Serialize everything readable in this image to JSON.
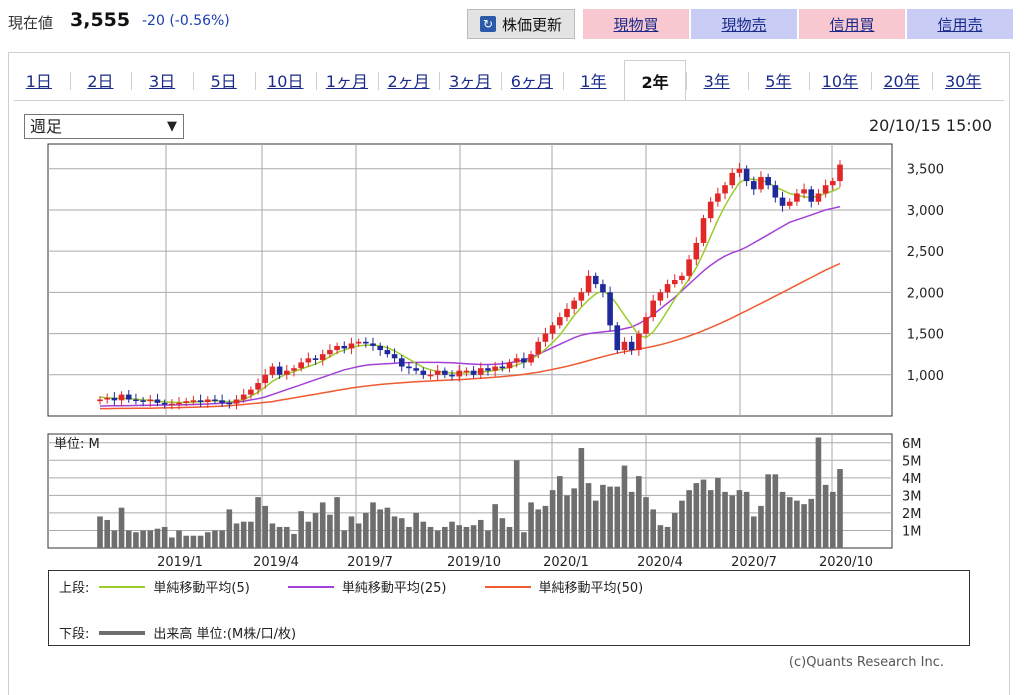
{
  "header": {
    "price_label": "現在値",
    "price": "3,555",
    "change": "-20 (-0.56%)",
    "update_button": "株価更新",
    "update_icon": "refresh-icon",
    "buttons": [
      {
        "label": "現物買",
        "color": "#f7c8cf"
      },
      {
        "label": "現物売",
        "color": "#c9cdf5"
      },
      {
        "label": "信用買",
        "color": "#f7c8cf"
      },
      {
        "label": "信用売",
        "color": "#c9cdf5"
      }
    ]
  },
  "tabs": [
    "1日",
    "2日",
    "3日",
    "5日",
    "10日",
    "1ヶ月",
    "2ヶ月",
    "3ヶ月",
    "6ヶ月",
    "1年",
    "2年",
    "3年",
    "5年",
    "10年",
    "20年",
    "30年"
  ],
  "active_tab": "2年",
  "period_select": "週足",
  "timestamp": "20/10/15 15:00",
  "legend": {
    "upper_label": "上段:",
    "lower_label": "下段:",
    "ma5": "単純移動平均(5)",
    "ma25": "単純移動平均(25)",
    "ma50": "単純移動平均(50)",
    "volume": "出来高 単位:(M株/口/枚)"
  },
  "copyright": "(c)Quants Research Inc.",
  "colors": {
    "up": "#e02828",
    "down": "#1e2a9a",
    "ma5": "#9ccc2c",
    "ma25": "#a340d8",
    "ma50": "#ef5a30",
    "volume": "#6e6e6e"
  },
  "chart_data": {
    "type": "candlestick",
    "price_axis": {
      "ticks": [
        "3,500",
        "3,000",
        "2,500",
        "2,000",
        "1,500",
        "1,000"
      ],
      "values": [
        3500,
        3000,
        2500,
        2000,
        1500,
        1000
      ],
      "ylim": [
        500,
        3800
      ]
    },
    "volume_axis": {
      "unit_label": "単位: M",
      "ticks": [
        "6M",
        "5M",
        "4M",
        "3M",
        "2M",
        "1M"
      ],
      "values": [
        6,
        5,
        4,
        3,
        2,
        1
      ],
      "ylim": [
        0,
        6.5
      ]
    },
    "x_labels": [
      "2019/1",
      "2019/4",
      "2019/7",
      "2019/10",
      "2020/1",
      "2020/4",
      "2020/7",
      "2020/10"
    ],
    "close": [
      700,
      720,
      690,
      760,
      700,
      690,
      680,
      700,
      660,
      640,
      650,
      660,
      680,
      690,
      670,
      700,
      690,
      660,
      650,
      700,
      760,
      820,
      900,
      1000,
      1100,
      1000,
      1050,
      1080,
      1150,
      1200,
      1180,
      1250,
      1300,
      1350,
      1320,
      1380,
      1400,
      1380,
      1350,
      1300,
      1250,
      1200,
      1100,
      1080,
      1050,
      1000,
      1000,
      1050,
      1000,
      980,
      1050,
      1050,
      1000,
      1080,
      1050,
      1100,
      1080,
      1150,
      1200,
      1150,
      1250,
      1400,
      1500,
      1600,
      1700,
      1800,
      1900,
      2000,
      2200,
      2100,
      2000,
      1600,
      1300,
      1400,
      1300,
      1500,
      1700,
      1900,
      2000,
      2100,
      2150,
      2200,
      2400,
      2600,
      2900,
      3100,
      3200,
      3300,
      3450,
      3500,
      3350,
      3250,
      3400,
      3300,
      3150,
      3050,
      3100,
      3200,
      3250,
      3100,
      3200,
      3300,
      3350,
      3550
    ],
    "ma5": [
      730,
      720,
      715,
      715,
      710,
      705,
      695,
      690,
      680,
      672,
      668,
      664,
      664,
      668,
      672,
      680,
      685,
      680,
      675,
      680,
      700,
      740,
      790,
      850,
      920,
      970,
      1010,
      1040,
      1070,
      1100,
      1130,
      1170,
      1220,
      1270,
      1300,
      1330,
      1350,
      1360,
      1360,
      1350,
      1330,
      1290,
      1240,
      1190,
      1140,
      1090,
      1060,
      1040,
      1030,
      1020,
      1020,
      1025,
      1030,
      1035,
      1040,
      1055,
      1070,
      1090,
      1120,
      1150,
      1190,
      1240,
      1310,
      1390,
      1480,
      1600,
      1720,
      1820,
      1910,
      1980,
      2020,
      1960,
      1850,
      1720,
      1600,
      1480,
      1450,
      1520,
      1640,
      1780,
      1920,
      2040,
      2160,
      2300,
      2480,
      2680,
      2880,
      3050,
      3200,
      3330,
      3380,
      3370,
      3360,
      3330,
      3280,
      3240,
      3200,
      3180,
      3160,
      3150,
      3170,
      3200,
      3230,
      3270
    ],
    "ma25": [
      620,
      622,
      624,
      625,
      626,
      627,
      628,
      630,
      632,
      633,
      634,
      635,
      637,
      640,
      642,
      645,
      650,
      655,
      660,
      668,
      680,
      695,
      710,
      730,
      760,
      790,
      820,
      850,
      880,
      910,
      940,
      970,
      1000,
      1030,
      1060,
      1080,
      1100,
      1115,
      1125,
      1130,
      1135,
      1140,
      1145,
      1148,
      1150,
      1150,
      1150,
      1150,
      1148,
      1145,
      1140,
      1135,
      1130,
      1125,
      1125,
      1128,
      1135,
      1145,
      1160,
      1180,
      1210,
      1250,
      1290,
      1330,
      1370,
      1410,
      1450,
      1480,
      1500,
      1510,
      1520,
      1530,
      1540,
      1560,
      1580,
      1620,
      1670,
      1730,
      1800,
      1870,
      1940,
      2020,
      2100,
      2180,
      2260,
      2330,
      2390,
      2440,
      2480,
      2510,
      2550,
      2600,
      2650,
      2700,
      2750,
      2800,
      2850,
      2880,
      2910,
      2940,
      2970,
      3000,
      3020,
      3040
    ],
    "ma50": [
      590,
      590,
      591,
      592,
      592,
      593,
      594,
      595,
      597,
      598,
      600,
      602,
      604,
      606,
      609,
      612,
      615,
      620,
      625,
      632,
      640,
      648,
      656,
      665,
      675,
      690,
      705,
      720,
      735,
      750,
      765,
      780,
      795,
      810,
      825,
      840,
      852,
      863,
      873,
      882,
      890,
      897,
      903,
      909,
      915,
      920,
      925,
      930,
      934,
      938,
      942,
      947,
      952,
      958,
      964,
      970,
      978,
      986,
      995,
      1005,
      1018,
      1032,
      1048,
      1065,
      1083,
      1103,
      1125,
      1148,
      1172,
      1196,
      1220,
      1242,
      1262,
      1280,
      1296,
      1312,
      1328,
      1345,
      1365,
      1388,
      1413,
      1440,
      1470,
      1502,
      1536,
      1572,
      1610,
      1650,
      1692,
      1735,
      1778,
      1822,
      1866,
      1910,
      1955,
      2000,
      2045,
      2090,
      2135,
      2180,
      2225,
      2270,
      2310,
      2350
    ],
    "volume": [
      1.8,
      1.6,
      1.0,
      2.3,
      1.0,
      0.9,
      1.0,
      1.0,
      1.1,
      1.2,
      0.6,
      1.0,
      0.7,
      0.7,
      0.7,
      0.9,
      1.0,
      1.0,
      2.2,
      1.4,
      1.5,
      1.5,
      2.9,
      2.4,
      1.4,
      1.2,
      1.2,
      0.8,
      2.1,
      1.5,
      2.0,
      2.6,
      1.9,
      2.9,
      1.0,
      1.8,
      1.4,
      2.0,
      2.6,
      2.2,
      2.3,
      1.8,
      1.7,
      1.2,
      2.0,
      1.5,
      1.2,
      1.0,
      1.2,
      1.5,
      1.3,
      1.2,
      1.3,
      1.6,
      1.0,
      2.5,
      1.7,
      1.2,
      5.0,
      0.9,
      2.6,
      2.2,
      2.4,
      3.3,
      4.1,
      3.0,
      3.4,
      5.7,
      3.7,
      2.7,
      3.6,
      3.5,
      3.5,
      4.7,
      3.2,
      4.1,
      2.9,
      2.2,
      1.3,
      1.2,
      2.0,
      2.7,
      3.3,
      3.7,
      3.9,
      3.3,
      4.0,
      3.2,
      3.0,
      3.3,
      3.2,
      1.8,
      2.4,
      4.2,
      4.2,
      3.2,
      2.9,
      2.7,
      2.5,
      2.8,
      6.3,
      3.6,
      3.2,
      4.5
    ]
  }
}
